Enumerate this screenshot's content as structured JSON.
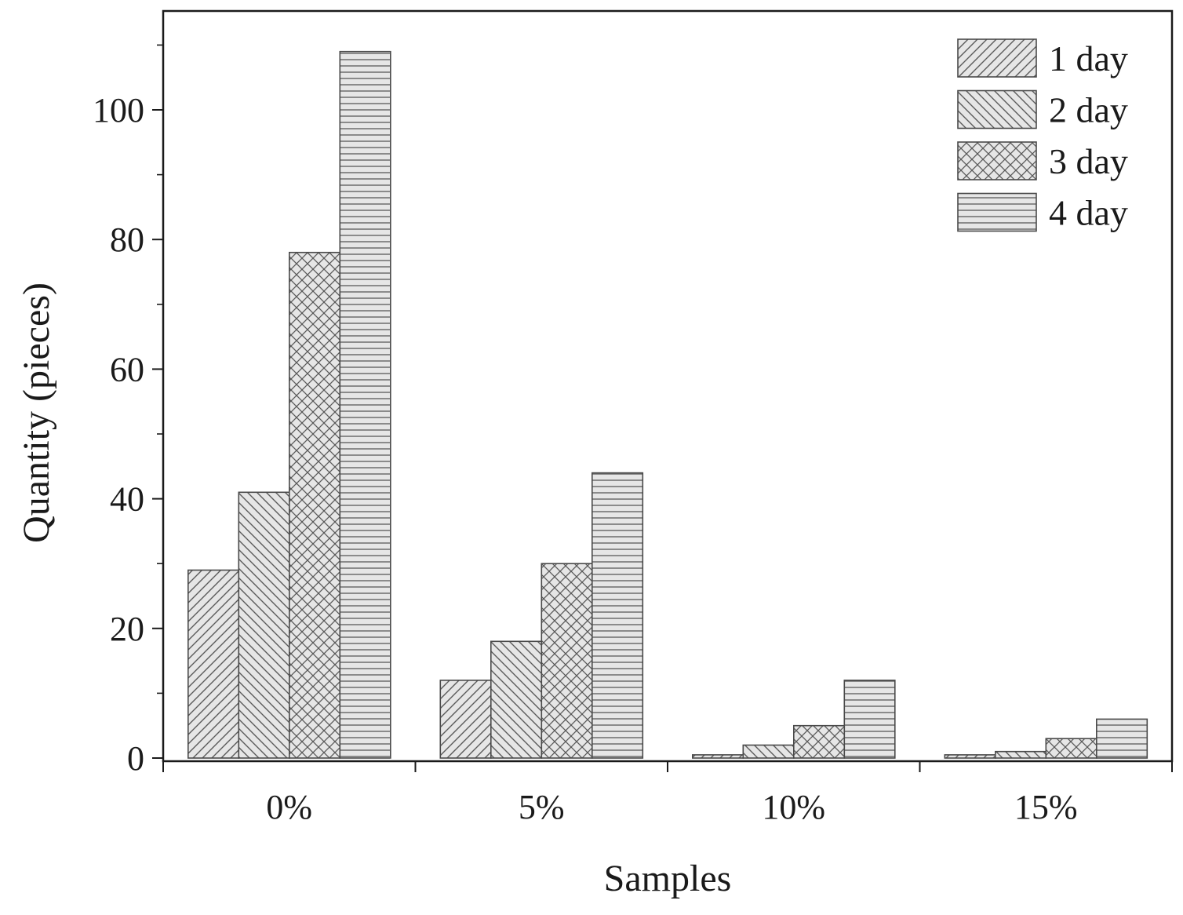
{
  "chart_data": {
    "type": "bar",
    "xlabel": "Samples",
    "ylabel": "Quantity (pieces)",
    "categories": [
      "0%",
      "5%",
      "10%",
      "15%"
    ],
    "ylim": [
      0,
      110
    ],
    "yticks": [
      0,
      20,
      40,
      60,
      80,
      100
    ],
    "legend_position": "top-right",
    "grid": false,
    "series": [
      {
        "name": "1 day",
        "pattern": "diagonal-up",
        "values": [
          29,
          12,
          0.5,
          0.5
        ]
      },
      {
        "name": "2 day",
        "pattern": "diagonal-down",
        "values": [
          41,
          18,
          2,
          1
        ]
      },
      {
        "name": "3 day",
        "pattern": "crosshatch",
        "values": [
          78,
          30,
          5,
          3
        ]
      },
      {
        "name": "4 day",
        "pattern": "horizontal",
        "values": [
          109,
          44,
          12,
          6
        ]
      }
    ],
    "colors": {
      "bar_fill": "#e6e6e6",
      "bar_stroke": "#4a4a4a",
      "hatch": "#5a5a5a",
      "axis": "#1a1a1a"
    }
  }
}
